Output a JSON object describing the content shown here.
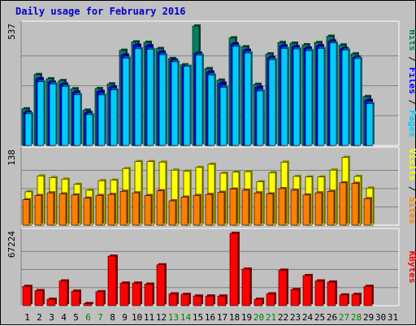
{
  "title": "Daily usage for February 2016",
  "chart_data": [
    {
      "type": "bar",
      "categories": [
        "1",
        "2",
        "3",
        "4",
        "5",
        "6",
        "7",
        "8",
        "9",
        "10",
        "11",
        "12",
        "13",
        "14",
        "15",
        "16",
        "17",
        "18",
        "19",
        "20",
        "21",
        "22",
        "23",
        "24",
        "25",
        "26",
        "27",
        "28",
        "29",
        "30",
        "31"
      ],
      "weekend_days": [
        "6",
        "7",
        "13",
        "14",
        "20",
        "21",
        "27",
        "28"
      ],
      "ymax_label": "537",
      "ylim": [
        0,
        537
      ],
      "series": [
        {
          "name": "Hits",
          "color": "#00805c",
          "values": [
            165,
            319,
            300,
            292,
            255,
            159,
            256,
            277,
            428,
            466,
            464,
            436,
            391,
            363,
            537,
            346,
            294,
            484,
            444,
            275,
            412,
            463,
            460,
            453,
            463,
            491,
            452,
            412,
            220,
            null,
            null
          ]
        },
        {
          "name": "Files",
          "color": "#0000ff",
          "values": [
            150,
            300,
            285,
            276,
            240,
            148,
            243,
            263,
            407,
            451,
            448,
            420,
            384,
            355,
            415,
            330,
            280,
            457,
            428,
            262,
            396,
            448,
            444,
            438,
            448,
            470,
            436,
            397,
            203,
            null,
            null
          ]
        },
        {
          "name": "Pages",
          "color": "#00ccff",
          "values": [
            143,
            286,
            277,
            266,
            229,
            139,
            227,
            250,
            393,
            435,
            432,
            408,
            376,
            356,
            406,
            317,
            262,
            446,
            416,
            245,
            386,
            436,
            434,
            427,
            436,
            461,
            429,
            391,
            188,
            null,
            null
          ]
        }
      ],
      "legend": [
        "Pages",
        "Files",
        "Hits"
      ]
    },
    {
      "type": "bar",
      "categories": [
        "1",
        "2",
        "3",
        "4",
        "5",
        "6",
        "7",
        "8",
        "9",
        "10",
        "11",
        "12",
        "13",
        "14",
        "15",
        "16",
        "17",
        "18",
        "19",
        "20",
        "21",
        "22",
        "23",
        "24",
        "25",
        "26",
        "27",
        "28",
        "29",
        "30",
        "31"
      ],
      "ymax_label": "138",
      "ylim": [
        0,
        138
      ],
      "series": [
        {
          "name": "Visits",
          "color": "#ffff00",
          "values": [
            63,
            93,
            90,
            87,
            77,
            66,
            84,
            85,
            107,
            120,
            120,
            119,
            104,
            102,
            109,
            115,
            98,
            100,
            101,
            82,
            99,
            119,
            92,
            91,
            91,
            104,
            128,
            92,
            70,
            null,
            null
          ]
        },
        {
          "name": "Sites",
          "color": "#ff8000",
          "values": [
            48,
            56,
            61,
            59,
            57,
            51,
            56,
            58,
            64,
            61,
            56,
            65,
            46,
            53,
            56,
            58,
            62,
            68,
            66,
            61,
            59,
            69,
            66,
            57,
            61,
            64,
            80,
            79,
            50,
            null,
            null
          ]
        }
      ],
      "legend": [
        "Sites",
        "Visits"
      ]
    },
    {
      "type": "bar",
      "categories": [
        "1",
        "2",
        "3",
        "4",
        "5",
        "6",
        "7",
        "8",
        "9",
        "10",
        "11",
        "12",
        "13",
        "14",
        "15",
        "16",
        "17",
        "18",
        "19",
        "20",
        "21",
        "22",
        "23",
        "24",
        "25",
        "26",
        "27",
        "28",
        "29",
        "30",
        "31"
      ],
      "ymax_label": "67224",
      "ylim": [
        0,
        67224
      ],
      "series": [
        {
          "name": "KBytes",
          "color": "#ff0000",
          "values": [
            18000,
            14000,
            6000,
            23000,
            13500,
            2000,
            13000,
            46000,
            21000,
            21000,
            20000,
            38000,
            11000,
            10500,
            9000,
            9000,
            9000,
            67224,
            34000,
            6000,
            11000,
            33000,
            15000,
            28000,
            23000,
            22000,
            10000,
            10500,
            18000,
            null,
            null
          ]
        }
      ],
      "legend": [
        "KBytes"
      ]
    }
  ]
}
